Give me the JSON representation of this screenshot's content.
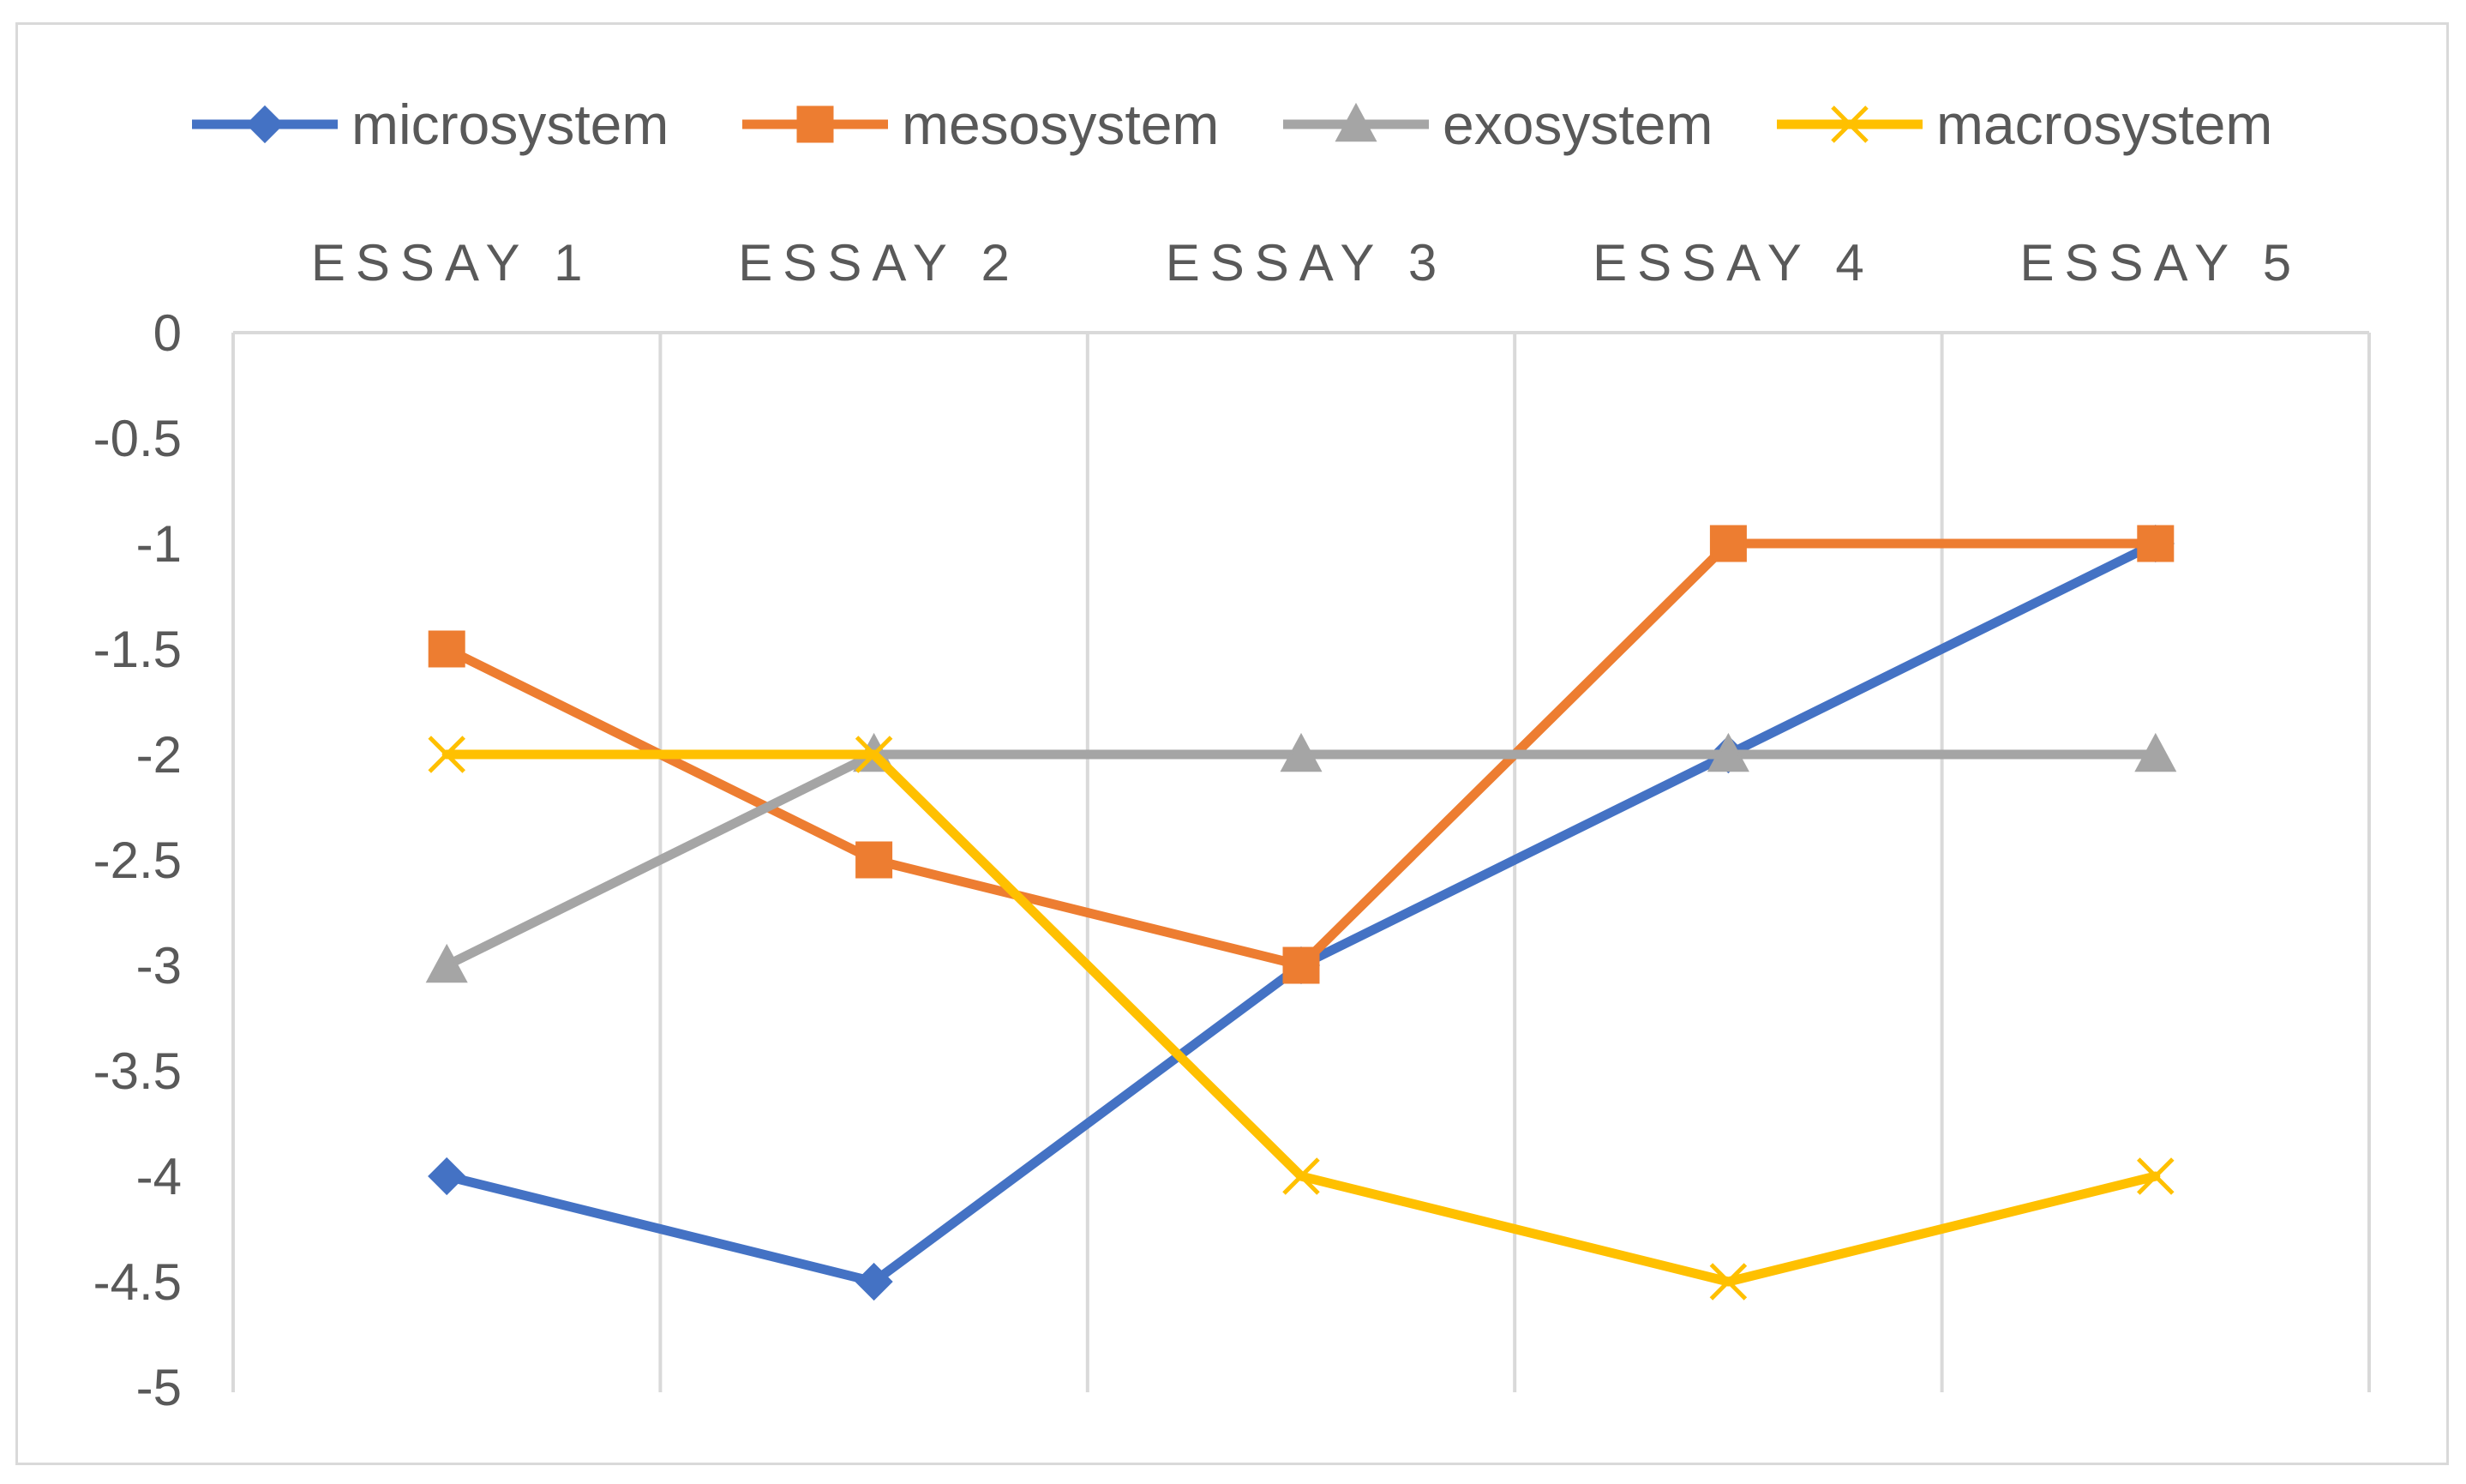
{
  "chart_data": {
    "type": "line",
    "categories": [
      "ESSAY 1",
      "ESSAY 2",
      "ESSAY 3",
      "ESSAY 4",
      "ESSAY 5"
    ],
    "series": [
      {
        "name": "microsystem",
        "values": [
          -4,
          -4.5,
          -3,
          -2,
          -1
        ],
        "color": "#4472c4",
        "marker": "diamond"
      },
      {
        "name": "mesosystem",
        "values": [
          -1.5,
          -2.5,
          -3,
          -1,
          -1
        ],
        "color": "#ed7d31",
        "marker": "square"
      },
      {
        "name": "exosystem",
        "values": [
          -3,
          -2,
          -2,
          -2,
          -2
        ],
        "color": "#a5a5a5",
        "marker": "triangle"
      },
      {
        "name": "macrosystem",
        "values": [
          -2,
          -2,
          -4,
          -4.5,
          -4
        ],
        "color": "#ffc000",
        "marker": "x"
      }
    ],
    "y_ticks": [
      "0",
      "-0.5",
      "-1",
      "-1.5",
      "-2",
      "-2.5",
      "-3",
      "-3.5",
      "-4",
      "-4.5",
      "-5"
    ],
    "ylim": [
      -5,
      0
    ],
    "y_step": 0.5,
    "categories_position": "top",
    "legend_position": "top",
    "grid": "vertical",
    "gridline_color": "#d9d9d9"
  }
}
